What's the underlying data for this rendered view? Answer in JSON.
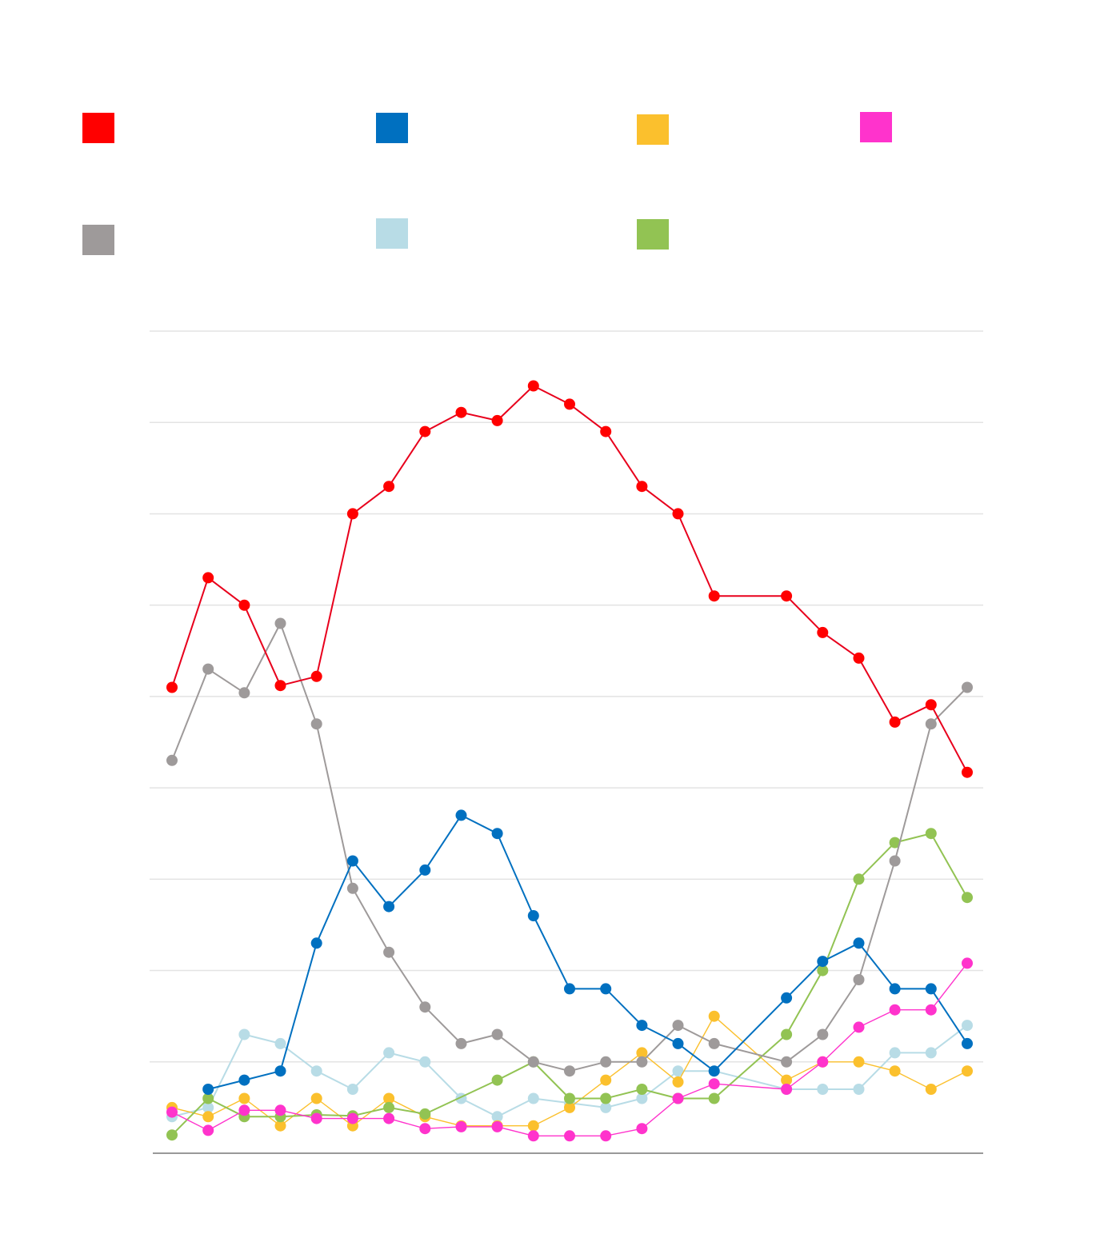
{
  "chart_data": {
    "type": "line",
    "title": "",
    "xlabel": "",
    "ylabel": "",
    "ylim": [
      0,
      90
    ],
    "grid": true,
    "legend_position": "top",
    "x": [
      1,
      2,
      3,
      4,
      5,
      6,
      7,
      8,
      9,
      10,
      11,
      12,
      13,
      14,
      15,
      16,
      17,
      18,
      19,
      20,
      21,
      22,
      23
    ],
    "series": [
      {
        "color": "#e8001c",
        "marker_color": "#ff0000",
        "values": [
          51,
          63,
          60,
          51.2,
          52.2,
          70,
          73,
          79,
          81.1,
          80.2,
          84,
          82,
          79,
          73,
          70,
          61,
          null,
          61,
          57,
          54.2,
          47.2,
          49.1,
          41.7
        ]
      },
      {
        "color": "#0070c0",
        "marker_color": "#0070c0",
        "values": [
          null,
          7,
          8,
          9,
          23,
          32,
          27,
          31,
          37,
          35,
          26,
          18,
          18,
          14,
          12,
          9,
          null,
          17,
          21,
          23,
          18,
          18,
          12
        ]
      },
      {
        "color": "#fbc02d",
        "marker_color": "#fbc02d",
        "values": [
          5,
          4,
          6,
          3,
          6,
          3,
          6,
          4,
          3,
          3,
          3,
          5,
          8,
          11,
          7.8,
          15,
          null,
          8,
          10,
          10,
          9,
          7,
          9
        ]
      },
      {
        "color": "#ff33cc",
        "marker_color": "#ff33cc",
        "values": [
          4.5,
          2.5,
          4.7,
          4.7,
          3.8,
          3.8,
          3.8,
          2.7,
          2.9,
          2.9,
          1.9,
          1.9,
          1.9,
          2.7,
          6,
          7.6,
          null,
          7,
          10,
          13.8,
          15.7,
          15.7,
          20.8
        ]
      },
      {
        "color": "#9e9a9a",
        "marker_color": "#9e9a9a",
        "values": [
          43,
          53,
          50.4,
          58,
          47,
          29,
          22,
          16,
          12,
          13,
          10,
          9,
          10,
          10,
          14,
          12,
          null,
          10,
          13,
          19,
          32,
          47,
          51
        ]
      },
      {
        "color": "#b8dce6",
        "marker_color": "#b8dce6",
        "values": [
          4,
          5,
          13,
          12,
          9,
          7,
          11,
          10,
          6,
          4,
          6,
          5.5,
          5,
          6,
          9,
          9,
          null,
          7,
          7,
          7,
          11,
          11,
          14
        ]
      },
      {
        "color": "#92c353",
        "marker_color": "#92c353",
        "values": [
          2,
          6,
          4,
          4,
          4.2,
          4.1,
          5,
          4.3,
          null,
          8,
          10,
          6,
          6,
          7,
          6,
          6,
          null,
          13,
          20,
          30,
          34,
          35,
          28
        ]
      }
    ]
  },
  "legend": {
    "items": [
      {
        "swatch": "#ff0000",
        "label": ""
      },
      {
        "swatch": "#0070c0",
        "label": ""
      },
      {
        "swatch": "#fbc02d",
        "label": ""
      },
      {
        "swatch": "#ff33cc",
        "label": ""
      },
      {
        "swatch": "#9e9a9a",
        "label": ""
      },
      {
        "swatch": "#b8dce6",
        "label": ""
      },
      {
        "swatch": "#92c353",
        "label": ""
      }
    ]
  }
}
